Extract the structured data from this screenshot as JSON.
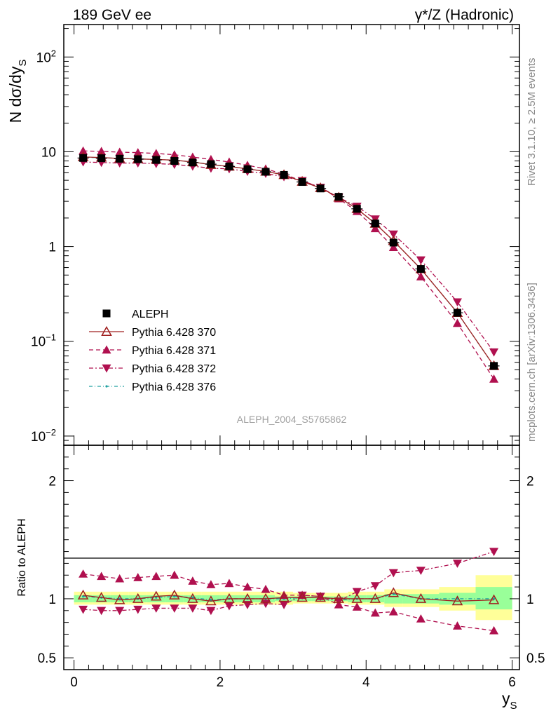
{
  "header": {
    "left": "189 GeV ee",
    "right": "γ*/Z (Hadronic)"
  },
  "side": {
    "rivet": "Rivet 3.1.10, ≥ 2.5M events",
    "mcplots": "mcplots.cern.ch [arXiv:1306.3436]"
  },
  "analysis_label": "ALEPH_2004_S5765862",
  "colors": {
    "data": "#000000",
    "p370": "#a02020",
    "p371": "#b0104f",
    "p372": "#b0104f",
    "p376": "#20a0a0",
    "band_outer": "#ffff99",
    "band_inner": "#99ff99"
  },
  "chart_data": [
    {
      "type": "line",
      "panel": "main",
      "ylabel_base": "N dσ/dy",
      "ylabel_sub": "S",
      "yscale": "log",
      "ylim": [
        0.008,
        220
      ],
      "xlim": [
        -0.14,
        6.1
      ],
      "y_ticks": [
        0.01,
        0.1,
        1,
        10,
        100
      ],
      "y_tick_labels": [
        {
          "base": "10",
          "exp": "−2"
        },
        {
          "base": "10",
          "exp": "−1"
        },
        {
          "base": "1",
          "exp": ""
        },
        {
          "base": "10",
          "exp": ""
        },
        {
          "base": "10",
          "exp": "2"
        }
      ],
      "x": [
        0.125,
        0.375,
        0.625,
        0.875,
        1.125,
        1.375,
        1.625,
        1.875,
        2.125,
        2.375,
        2.625,
        2.875,
        3.125,
        3.375,
        3.625,
        3.875,
        4.125,
        4.375,
        4.75,
        5.25,
        5.75
      ],
      "series": [
        {
          "name": "ALEPH",
          "key": "data",
          "values": [
            8.6,
            8.55,
            8.45,
            8.35,
            8.2,
            8.0,
            7.7,
            7.4,
            7.0,
            6.55,
            6.15,
            5.7,
            4.8,
            4.1,
            3.35,
            2.5,
            1.75,
            1.1,
            0.58,
            0.2,
            0.055
          ]
        },
        {
          "name": "Pythia 6.428 370",
          "key": "p370",
          "values": [
            8.8,
            8.7,
            8.5,
            8.4,
            8.3,
            8.15,
            7.8,
            7.3,
            7.0,
            6.6,
            6.2,
            5.7,
            4.85,
            4.15,
            3.3,
            2.5,
            1.75,
            1.15,
            0.58,
            0.2,
            0.055
          ]
        },
        {
          "name": "Pythia 6.428 371",
          "key": "p371",
          "values": [
            10.2,
            10.1,
            9.9,
            9.8,
            9.6,
            9.3,
            8.8,
            8.3,
            7.8,
            7.2,
            6.6,
            5.8,
            4.9,
            4.2,
            3.2,
            2.35,
            1.55,
            0.98,
            0.48,
            0.155,
            0.04
          ]
        },
        {
          "name": "Pythia 6.428 372",
          "key": "p372",
          "values": [
            7.8,
            7.7,
            7.6,
            7.6,
            7.5,
            7.35,
            7.05,
            6.7,
            6.6,
            6.2,
            5.9,
            5.45,
            4.95,
            4.2,
            3.3,
            2.65,
            1.95,
            1.35,
            0.72,
            0.26,
            0.077
          ]
        },
        {
          "name": "Pythia 6.428 376",
          "key": "p376",
          "values": [
            8.75,
            8.65,
            8.5,
            8.4,
            8.3,
            8.15,
            7.8,
            7.35,
            7.0,
            6.6,
            6.2,
            5.75,
            4.85,
            4.15,
            3.3,
            2.5,
            1.75,
            1.15,
            0.58,
            0.2,
            0.055
          ]
        }
      ]
    },
    {
      "type": "line",
      "panel": "ratio",
      "xlabel_base": "y",
      "xlabel_sub": "S",
      "ylabel": "Ratio to ALEPH",
      "ylim": [
        0.4,
        2.3
      ],
      "xlim": [
        -0.14,
        6.1
      ],
      "x_ticks": [
        0,
        2,
        4,
        6
      ],
      "x_tick_labels": [
        "0",
        "2",
        "4",
        "6"
      ],
      "y_ticks": [
        0.5,
        1,
        2
      ],
      "y_tick_labels": [
        "0.5",
        "1",
        "2"
      ],
      "x": [
        0.125,
        0.375,
        0.625,
        0.875,
        1.125,
        1.375,
        1.625,
        1.875,
        2.125,
        2.375,
        2.625,
        2.875,
        3.125,
        3.375,
        3.625,
        3.875,
        4.125,
        4.375,
        4.75,
        5.25,
        5.75
      ],
      "x_edges": [
        0,
        0.25,
        0.5,
        0.75,
        1.0,
        1.25,
        1.5,
        1.75,
        2.0,
        2.25,
        2.5,
        2.75,
        3.0,
        3.25,
        3.5,
        3.75,
        4.0,
        4.25,
        4.5,
        5.0,
        5.5,
        6.0
      ],
      "band_outer": [
        [
          0.95,
          1.06
        ],
        [
          0.95,
          1.06
        ],
        [
          0.95,
          1.06
        ],
        [
          0.95,
          1.06
        ],
        [
          0.95,
          1.06
        ],
        [
          0.95,
          1.06
        ],
        [
          0.95,
          1.06
        ],
        [
          0.95,
          1.06
        ],
        [
          0.95,
          1.06
        ],
        [
          0.95,
          1.06
        ],
        [
          0.95,
          1.06
        ],
        [
          0.95,
          1.06
        ],
        [
          0.96,
          1.05
        ],
        [
          0.96,
          1.05
        ],
        [
          0.96,
          1.05
        ],
        [
          0.95,
          1.06
        ],
        [
          0.95,
          1.06
        ],
        [
          0.93,
          1.08
        ],
        [
          0.93,
          1.08
        ],
        [
          0.9,
          1.1
        ],
        [
          0.82,
          1.2
        ]
      ],
      "band_inner": [
        [
          0.97,
          1.03
        ],
        [
          0.97,
          1.03
        ],
        [
          0.97,
          1.03
        ],
        [
          0.97,
          1.03
        ],
        [
          0.97,
          1.03
        ],
        [
          0.97,
          1.03
        ],
        [
          0.97,
          1.03
        ],
        [
          0.97,
          1.03
        ],
        [
          0.97,
          1.03
        ],
        [
          0.97,
          1.03
        ],
        [
          0.97,
          1.03
        ],
        [
          0.98,
          1.02
        ],
        [
          0.98,
          1.02
        ],
        [
          0.98,
          1.02
        ],
        [
          0.98,
          1.02
        ],
        [
          0.97,
          1.03
        ],
        [
          0.97,
          1.03
        ],
        [
          0.96,
          1.04
        ],
        [
          0.96,
          1.04
        ],
        [
          0.95,
          1.05
        ],
        [
          0.91,
          1.1
        ]
      ],
      "series": [
        {
          "key": "p370",
          "values": [
            1.03,
            1.01,
            0.99,
            1.0,
            1.02,
            1.03,
            1.0,
            0.98,
            1.0,
            1.0,
            1.0,
            1.01,
            1.01,
            1.01,
            1.0,
            1.0,
            1.0,
            1.05,
            1.0,
            0.98,
            0.99
          ]
        },
        {
          "key": "p371",
          "values": [
            1.21,
            1.19,
            1.17,
            1.18,
            1.19,
            1.2,
            1.15,
            1.12,
            1.13,
            1.1,
            1.08,
            1.03,
            1.03,
            1.02,
            0.95,
            0.93,
            0.88,
            0.89,
            0.83,
            0.77,
            0.73
          ]
        },
        {
          "key": "p372",
          "values": [
            0.91,
            0.9,
            0.9,
            0.91,
            0.92,
            0.92,
            0.92,
            0.9,
            0.94,
            0.95,
            0.96,
            0.95,
            1.03,
            1.02,
            0.98,
            1.06,
            1.11,
            1.22,
            1.24,
            1.3,
            1.4
          ]
        },
        {
          "key": "p376",
          "values": [
            1.02,
            1.01,
            1.0,
            1.0,
            1.01,
            1.02,
            1.01,
            0.99,
            1.0,
            1.0,
            1.0,
            1.0,
            1.01,
            1.01,
            0.99,
            1.0,
            1.0,
            1.04,
            1.0,
            1.0,
            1.0
          ]
        }
      ]
    }
  ]
}
